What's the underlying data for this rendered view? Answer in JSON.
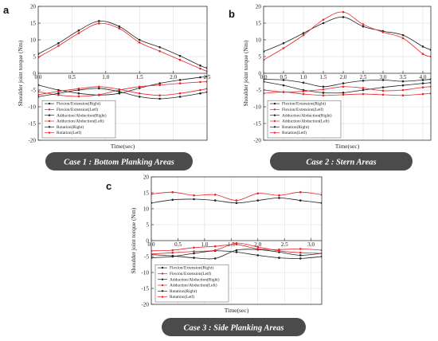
{
  "ylabel": "Shoulder joint torque (Nm)",
  "xlabel": "Time(sec)",
  "colors": {
    "black": "#222222",
    "red": "#e8262a",
    "grid": "#d8d8d8",
    "banner": "#4b4b4b"
  },
  "chart_data": [
    {
      "panel": "a",
      "type": "line",
      "banner": "Case 1 : Bottom Planking Areas",
      "xlim": [
        0,
        2.5
      ],
      "ylim": [
        -20,
        20
      ],
      "xticks": [
        "0.0",
        "0.5",
        "1.0",
        "1.5",
        "2.0",
        "2.5"
      ],
      "yticks": [
        "-20",
        "-15",
        "-10",
        "-5",
        "0",
        "5",
        "10",
        "15",
        "20"
      ],
      "grid": true,
      "legend_position": "lower-left",
      "series": [
        {
          "name": "Flexion/Extension(Right)",
          "color": "black",
          "x": [
            0,
            0.3,
            0.6,
            0.9,
            1.2,
            1.5,
            1.8,
            2.1,
            2.4,
            2.5
          ],
          "y": [
            5.8,
            9.0,
            12.8,
            15.6,
            14.0,
            10.0,
            7.8,
            5.2,
            2.3,
            1.6
          ]
        },
        {
          "name": "Flexion/Extension(Letf)",
          "color": "red",
          "x": [
            0,
            0.3,
            0.6,
            0.9,
            1.2,
            1.5,
            1.8,
            2.1,
            2.4,
            2.5
          ],
          "y": [
            4.8,
            8.2,
            12.0,
            14.9,
            13.4,
            9.2,
            6.6,
            4.0,
            1.4,
            0.6
          ]
        },
        {
          "name": "Adduction/Abduction(Right)",
          "color": "black",
          "x": [
            0,
            0.3,
            0.6,
            0.9,
            1.2,
            1.5,
            1.8,
            2.1,
            2.4,
            2.5
          ],
          "y": [
            -3.5,
            -5.0,
            -6.0,
            -6.5,
            -6.0,
            -4.4,
            -3.0,
            -2.0,
            -1.2,
            -1.0
          ]
        },
        {
          "name": "Adduction/Abduction(Left)",
          "color": "red",
          "x": [
            0,
            0.3,
            0.6,
            0.9,
            1.2,
            1.5,
            1.8,
            2.1,
            2.4,
            2.5
          ],
          "y": [
            -5.5,
            -6.5,
            -6.9,
            -6.4,
            -5.0,
            -4.0,
            -3.5,
            -3.0,
            -2.6,
            -2.5
          ]
        },
        {
          "name": "Rotation(Right)",
          "color": "black",
          "x": [
            0,
            0.3,
            0.6,
            0.9,
            1.2,
            1.5,
            1.8,
            2.1,
            2.4,
            2.5
          ],
          "y": [
            -7.0,
            -6.0,
            -5.0,
            -4.5,
            -5.5,
            -7.0,
            -7.6,
            -7.0,
            -6.0,
            -5.6
          ]
        },
        {
          "name": "Rotation(Letf)",
          "color": "red",
          "x": [
            0,
            0.3,
            0.6,
            0.9,
            1.2,
            1.5,
            1.8,
            2.1,
            2.4,
            2.5
          ],
          "y": [
            -6.4,
            -5.4,
            -4.6,
            -4.0,
            -4.8,
            -6.0,
            -6.6,
            -6.0,
            -5.0,
            -4.6
          ]
        }
      ]
    },
    {
      "panel": "b",
      "type": "line",
      "banner": "Case 2 : Stern Areas",
      "xlim": [
        0,
        4.2
      ],
      "ylim": [
        -20,
        20
      ],
      "xticks": [
        "0.0",
        "0.5",
        "1.0",
        "1.5",
        "2.0",
        "2.5",
        "3.0",
        "3.5",
        "4.0"
      ],
      "yticks": [
        "-20",
        "-15",
        "-10",
        "-5",
        "0",
        "5",
        "10",
        "15",
        "20"
      ],
      "grid": true,
      "legend_position": "lower-left",
      "series": [
        {
          "name": "Flexion/Extension(Right)",
          "color": "black",
          "x": [
            0,
            0.5,
            1.0,
            1.5,
            2.0,
            2.5,
            3.0,
            3.5,
            4.0,
            4.2
          ],
          "y": [
            6.5,
            9.0,
            12.0,
            15.0,
            16.8,
            14.0,
            12.6,
            11.4,
            8.0,
            7.0
          ]
        },
        {
          "name": "Flexion/Extension(Letf)",
          "color": "red",
          "x": [
            0,
            0.5,
            1.0,
            1.5,
            2.0,
            2.5,
            3.0,
            3.5,
            4.0,
            4.2
          ],
          "y": [
            4.0,
            7.5,
            11.4,
            16.0,
            18.3,
            14.6,
            12.3,
            10.5,
            5.8,
            5.0
          ]
        },
        {
          "name": "Adduction/Abduction(Right)",
          "color": "black",
          "x": [
            0,
            0.5,
            1.0,
            1.5,
            2.0,
            2.5,
            3.0,
            3.5,
            4.0,
            4.2
          ],
          "y": [
            -2.5,
            -3.6,
            -5.0,
            -5.8,
            -5.8,
            -5.0,
            -4.2,
            -3.6,
            -3.0,
            -2.8
          ]
        },
        {
          "name": "Adduction/Abduction(Left)",
          "color": "red",
          "x": [
            0,
            0.5,
            1.0,
            1.5,
            2.0,
            2.5,
            3.0,
            3.5,
            4.0,
            4.2
          ],
          "y": [
            -5.0,
            -5.6,
            -5.4,
            -4.8,
            -4.0,
            -4.4,
            -5.2,
            -5.0,
            -4.2,
            -4.0
          ]
        },
        {
          "name": "Rotation(Right)",
          "color": "black",
          "x": [
            0,
            0.5,
            1.0,
            1.5,
            2.0,
            2.5,
            3.0,
            3.5,
            4.0,
            4.2
          ],
          "y": [
            -1.8,
            -2.0,
            -2.8,
            -4.0,
            -3.0,
            -2.2,
            -2.0,
            -2.4,
            -2.0,
            -1.8
          ]
        },
        {
          "name": "Rotation(Letf)",
          "color": "red",
          "x": [
            0,
            0.5,
            1.0,
            1.5,
            2.0,
            2.5,
            3.0,
            3.5,
            4.0,
            4.2
          ],
          "y": [
            -6.0,
            -5.6,
            -6.2,
            -6.6,
            -6.4,
            -6.2,
            -6.4,
            -6.6,
            -6.2,
            -6.0
          ]
        }
      ]
    },
    {
      "panel": "c",
      "type": "line",
      "banner": "Case 3 : Side Planking Areas",
      "xlim": [
        0,
        3.2
      ],
      "ylim": [
        -20,
        20
      ],
      "xticks": [
        "0.0",
        "0.5",
        "1.0",
        "1.5",
        "2.0",
        "2.5",
        "3.0"
      ],
      "yticks": [
        "-20",
        "-15",
        "-10",
        "-5",
        "0",
        "5",
        "10",
        "15",
        "20"
      ],
      "grid": true,
      "legend_position": "lower-left",
      "series": [
        {
          "name": "Flexion/Extension(Right)",
          "color": "black",
          "x": [
            0,
            0.4,
            0.8,
            1.2,
            1.6,
            2.0,
            2.4,
            2.8,
            3.2
          ],
          "y": [
            11.8,
            12.8,
            13.0,
            12.6,
            11.8,
            12.6,
            13.4,
            12.6,
            11.8
          ]
        },
        {
          "name": "Flexion/Extension(Letf)",
          "color": "red",
          "x": [
            0,
            0.4,
            0.8,
            1.2,
            1.6,
            2.0,
            2.4,
            2.8,
            3.2
          ],
          "y": [
            14.6,
            15.2,
            14.2,
            14.4,
            12.6,
            14.8,
            14.2,
            15.2,
            14.4
          ]
        },
        {
          "name": "Adduction/Abduction(Right)",
          "color": "black",
          "x": [
            0,
            0.4,
            0.8,
            1.2,
            1.6,
            2.0,
            2.4,
            2.8,
            3.2
          ],
          "y": [
            -4.4,
            -4.8,
            -5.4,
            -5.6,
            -3.0,
            -2.8,
            -3.6,
            -4.6,
            -4.0
          ]
        },
        {
          "name": "Adduction/Abduction(Left)",
          "color": "red",
          "x": [
            0,
            0.4,
            0.8,
            1.2,
            1.6,
            2.0,
            2.4,
            2.8,
            3.2
          ],
          "y": [
            -3.2,
            -3.0,
            -2.2,
            -1.8,
            -1.2,
            -2.6,
            -2.8,
            -2.6,
            -3.0
          ]
        },
        {
          "name": "Rotation(Right)",
          "color": "black",
          "x": [
            0,
            0.4,
            0.8,
            1.2,
            1.6,
            2.0,
            2.4,
            2.8,
            3.2
          ],
          "y": [
            -5.4,
            -5.0,
            -4.0,
            -3.2,
            -3.6,
            -4.6,
            -5.4,
            -5.6,
            -5.0
          ]
        },
        {
          "name": "Rotation(Letf)",
          "color": "red",
          "x": [
            0,
            0.4,
            0.8,
            1.2,
            1.6,
            2.0,
            2.4,
            2.8,
            3.2
          ],
          "y": [
            -4.2,
            -3.8,
            -3.4,
            -3.0,
            -0.8,
            -2.0,
            -3.2,
            -3.8,
            -4.0
          ]
        }
      ]
    }
  ]
}
